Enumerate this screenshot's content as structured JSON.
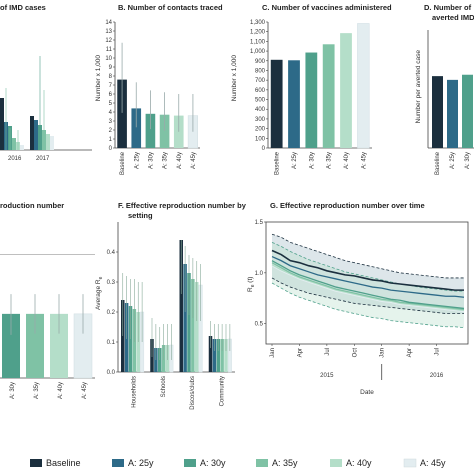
{
  "colors": {
    "Baseline": "#1b2f3e",
    "A: 25y": "#2d6a88",
    "A: 30y": "#4fa08b",
    "A: 35y": "#7fc2a5",
    "A: 40y": "#b4dec9",
    "A: 45y": "#e3edf0"
  },
  "legend": [
    "Baseline",
    "A: 25y",
    "A: 30y",
    "A: 35y",
    "A: 40y",
    "A: 45y"
  ],
  "chart_data": [
    {
      "id": "A",
      "type": "bar",
      "title": "of IMD cases",
      "categories": [
        "2016",
        "2017"
      ],
      "series": [
        {
          "name": "Baseline",
          "values": [
            null,
            null
          ]
        },
        {
          "name": "A: 25y",
          "values": [
            null,
            null
          ]
        },
        {
          "name": "A: 30y",
          "values": [
            null,
            null
          ]
        },
        {
          "name": "A: 35y",
          "values": [
            null,
            null
          ]
        },
        {
          "name": "A: 40y",
          "values": [
            null,
            null
          ]
        },
        {
          "name": "A: 45y",
          "values": [
            null,
            null
          ]
        }
      ]
    },
    {
      "id": "B",
      "type": "bar",
      "title": "B. Number of contacts traced",
      "ylabel": "Number x 1,000",
      "ylim": [
        0,
        14
      ],
      "yticks": [
        0,
        1,
        2,
        3,
        4,
        5,
        6,
        7,
        8,
        9,
        10,
        11,
        12,
        13,
        14
      ],
      "categories": [
        "Baseline",
        "A: 25y",
        "A: 30y",
        "A: 35y",
        "A: 40y",
        "A: 45y"
      ],
      "values": [
        7.6,
        4.4,
        3.8,
        3.7,
        3.6,
        3.6
      ],
      "error_low": [
        3.9,
        2.3,
        2.1,
        1.9,
        1.8,
        1.8
      ],
      "error_high": [
        11.7,
        7.3,
        6.4,
        6.2,
        6.0,
        6.0
      ]
    },
    {
      "id": "C",
      "type": "bar",
      "title": "C. Number of vaccines administered",
      "ylabel": "Number x 1,000",
      "ylim": [
        0,
        1300
      ],
      "yticks": [
        0,
        100,
        200,
        300,
        400,
        500,
        600,
        700,
        800,
        900,
        1000,
        1100,
        1200,
        1300
      ],
      "categories": [
        "Baseline",
        "A: 25y",
        "A: 30y",
        "A: 35y",
        "A: 40y",
        "A: 45y"
      ],
      "values": [
        910,
        905,
        985,
        1070,
        1185,
        1285
      ]
    },
    {
      "id": "D",
      "type": "bar",
      "title": "D. Number of",
      "title2": "averted IMD",
      "ylabel": "Number per averted case",
      "categories": [
        "Baseline",
        "A: 25y",
        "A: 30y"
      ],
      "values": [
        1540,
        1460,
        1570
      ]
    },
    {
      "id": "E",
      "type": "bar",
      "title": "roduction number",
      "categories": [
        "A: 30y",
        "A: 35y",
        "A: 40y",
        "A: 45y"
      ],
      "values": [
        0.52,
        0.52,
        0.52,
        0.52
      ],
      "error_low": [
        0.35,
        0.36,
        0.36,
        0.36
      ],
      "error_high": [
        0.68,
        0.68,
        0.68,
        0.68
      ]
    },
    {
      "id": "F",
      "type": "bar",
      "title": "F. Effective reproduction number by",
      "title2": "setting",
      "ylabel": "Average R",
      "ylabel_sub": "e",
      "ylim": [
        0,
        0.5
      ],
      "yticks": [
        "0.0",
        "0.1",
        "0.2",
        "0.3",
        "0.4"
      ],
      "yticks_values": [
        0,
        0.1,
        0.2,
        0.3,
        0.4
      ],
      "categories": [
        "Households",
        "Schools",
        "Discos/clubs",
        "Community"
      ],
      "series": [
        {
          "name": "Baseline",
          "values": [
            0.24,
            0.11,
            0.44,
            0.12
          ],
          "low": [
            0.12,
            0.05,
            0.26,
            0.08
          ],
          "high": [
            0.33,
            0.18,
            0.44,
            0.17
          ]
        },
        {
          "name": "A: 25y",
          "values": [
            0.23,
            0.08,
            0.36,
            0.11
          ],
          "low": [
            0.11,
            0.04,
            0.2,
            0.07
          ],
          "high": [
            0.32,
            0.16,
            0.42,
            0.16
          ]
        },
        {
          "name": "A: 30y",
          "values": [
            0.22,
            0.08,
            0.33,
            0.11
          ],
          "low": [
            0.11,
            0.04,
            0.19,
            0.07
          ],
          "high": [
            0.31,
            0.15,
            0.39,
            0.16
          ]
        },
        {
          "name": "A: 35y",
          "values": [
            0.21,
            0.09,
            0.31,
            0.11
          ],
          "low": [
            0.1,
            0.04,
            0.18,
            0.07
          ],
          "high": [
            0.31,
            0.16,
            0.38,
            0.16
          ]
        },
        {
          "name": "A: 40y",
          "values": [
            0.2,
            0.09,
            0.3,
            0.11
          ],
          "low": [
            0.1,
            0.04,
            0.17,
            0.07
          ],
          "high": [
            0.3,
            0.16,
            0.37,
            0.16
          ]
        },
        {
          "name": "A: 45y",
          "values": [
            0.2,
            0.09,
            0.29,
            0.11
          ],
          "low": [
            0.1,
            0.04,
            0.17,
            0.07
          ],
          "high": [
            0.3,
            0.16,
            0.36,
            0.16
          ]
        }
      ]
    },
    {
      "id": "G",
      "type": "line",
      "title": "G. Effective reproduction number over time",
      "xlabel": "Date",
      "ylabel": "R",
      "ylabel_sub": "e",
      "ylabel_suffix": "(t)",
      "ylim": [
        0.3,
        1.5
      ],
      "yticks": [
        "0.5",
        "1.0",
        "1.5"
      ],
      "yticks_values": [
        0.5,
        1.0,
        1.5
      ],
      "xticks": [
        "Jan",
        "Apr",
        "Jul",
        "Oct",
        "Jan",
        "Apr",
        "Jul"
      ],
      "xticks_values": [
        0,
        3,
        6,
        9,
        12,
        15,
        18
      ],
      "year_labels": [
        "2015",
        "2016"
      ],
      "year_positions": [
        6,
        18
      ],
      "xlim": [
        0,
        21
      ],
      "series": [
        {
          "name": "Baseline",
          "x": [
            0,
            1,
            2,
            3,
            4,
            5,
            6,
            7,
            8,
            9,
            10,
            11,
            12,
            13,
            14,
            15,
            16,
            17,
            18,
            19,
            20,
            21
          ],
          "y": [
            1.22,
            1.18,
            1.12,
            1.1,
            1.07,
            1.05,
            1.02,
            1.0,
            0.98,
            0.97,
            0.95,
            0.93,
            0.92,
            0.9,
            0.89,
            0.88,
            0.87,
            0.86,
            0.85,
            0.84,
            0.83,
            0.83
          ],
          "low": [
            0.95,
            0.9,
            0.86,
            0.83,
            0.8,
            0.78,
            0.76,
            0.74,
            0.72,
            0.7,
            0.69,
            0.68,
            0.67,
            0.66,
            0.65,
            0.64,
            0.63,
            0.62,
            0.61,
            0.6,
            0.6,
            0.6
          ],
          "high": [
            1.38,
            1.35,
            1.3,
            1.27,
            1.24,
            1.21,
            1.18,
            1.15,
            1.12,
            1.1,
            1.08,
            1.06,
            1.04,
            1.02,
            1.0,
            0.99,
            0.98,
            0.97,
            0.96,
            0.95,
            0.95,
            0.95
          ]
        },
        {
          "name": "A: 25y",
          "x": [
            0,
            1,
            2,
            3,
            4,
            5,
            6,
            7,
            8,
            9,
            10,
            11,
            12,
            13,
            14,
            15,
            16,
            17,
            18,
            19,
            20,
            21
          ],
          "y": [
            1.16,
            1.12,
            1.07,
            1.04,
            1.01,
            0.98,
            0.96,
            0.94,
            0.92,
            0.9,
            0.88,
            0.86,
            0.85,
            0.83,
            0.82,
            0.81,
            0.8,
            0.79,
            0.78,
            0.77,
            0.77,
            0.76
          ]
        },
        {
          "name": "A: 30y",
          "x": [
            0,
            1,
            2,
            3,
            4,
            5,
            6,
            7,
            8,
            9,
            10,
            11,
            12,
            13,
            14,
            15,
            16,
            17,
            18,
            19,
            20,
            21
          ],
          "y": [
            1.12,
            1.07,
            1.02,
            0.98,
            0.95,
            0.92,
            0.89,
            0.86,
            0.84,
            0.82,
            0.8,
            0.78,
            0.76,
            0.74,
            0.73,
            0.71,
            0.7,
            0.69,
            0.68,
            0.67,
            0.66,
            0.65
          ],
          "low": [
            0.9,
            0.85,
            0.8,
            0.76,
            0.73,
            0.7,
            0.67,
            0.64,
            0.62,
            0.6,
            0.58,
            0.56,
            0.55,
            0.53,
            0.52,
            0.51,
            0.5,
            0.49,
            0.48,
            0.47,
            0.47,
            0.46
          ],
          "high": [
            1.3,
            1.26,
            1.21,
            1.17,
            1.13,
            1.1,
            1.07,
            1.04,
            1.01,
            0.99,
            0.97,
            0.95,
            0.93,
            0.91,
            0.89,
            0.88,
            0.86,
            0.85,
            0.84,
            0.83,
            0.82,
            0.82
          ]
        },
        {
          "name": "A: 35y",
          "x": [
            0,
            1,
            2,
            3,
            4,
            5,
            6,
            7,
            8,
            9,
            10,
            11,
            12,
            13,
            14,
            15,
            16,
            17,
            18,
            19,
            20,
            21
          ],
          "y": [
            1.1,
            1.05,
            1.0,
            0.96,
            0.93,
            0.9,
            0.87,
            0.84,
            0.82,
            0.8,
            0.78,
            0.76,
            0.74,
            0.73,
            0.71,
            0.7,
            0.69,
            0.68,
            0.67,
            0.66,
            0.65,
            0.64
          ]
        },
        {
          "name": "A: 40y",
          "x": [
            0,
            1,
            2,
            3,
            4,
            5,
            6,
            7,
            8,
            9,
            10,
            11,
            12,
            13,
            14,
            15,
            16,
            17,
            18,
            19,
            20,
            21
          ],
          "y": [
            1.08,
            1.03,
            0.99,
            0.95,
            0.92,
            0.89,
            0.86,
            0.83,
            0.81,
            0.79,
            0.77,
            0.75,
            0.73,
            0.72,
            0.7,
            0.69,
            0.68,
            0.67,
            0.66,
            0.65,
            0.64,
            0.63
          ]
        },
        {
          "name": "A: 45y",
          "x": [
            0,
            1,
            2,
            3,
            4,
            5,
            6,
            7,
            8,
            9,
            10,
            11,
            12,
            13,
            14,
            15,
            16,
            17,
            18,
            19,
            20,
            21
          ],
          "y": [
            1.07,
            1.02,
            0.98,
            0.94,
            0.91,
            0.88,
            0.85,
            0.82,
            0.8,
            0.78,
            0.76,
            0.74,
            0.72,
            0.71,
            0.69,
            0.68,
            0.67,
            0.66,
            0.65,
            0.64,
            0.63,
            0.62
          ]
        }
      ]
    }
  ]
}
